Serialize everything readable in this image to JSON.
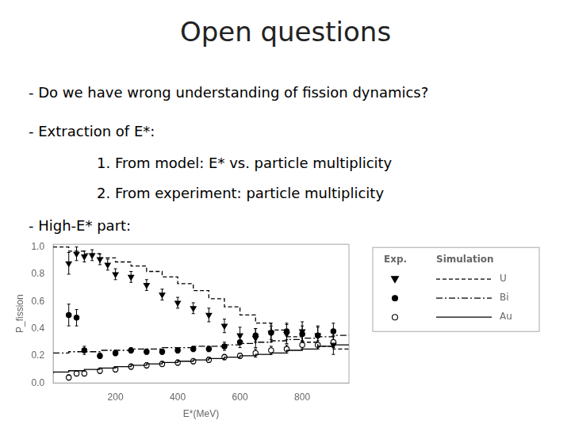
{
  "chart_data": {
    "type": "scatter",
    "title": "Open questions",
    "annotations": [
      "- Do we have wrong understanding of fission dynamics?",
      "- Extraction of E*:",
      "1. From model: E* vs. particle multiplicity",
      "2. From experiment: particle multiplicity",
      "- High-E* part:"
    ],
    "x_label": "E*(MeV)",
    "y_label": "P_fission",
    "xlim": [
      0,
      950
    ],
    "xticks": [
      200,
      400,
      600,
      800
    ],
    "ylim": [
      0,
      1.02
    ],
    "yticks": [
      {
        "value": 0,
        "label": "0.0"
      },
      0.2,
      0.4,
      0.6,
      0.8,
      {
        "value": 1,
        "label": "1.0"
      }
    ],
    "grid": false,
    "legend": "right",
    "legend_columns": [
      "Exp.",
      "Simulation"
    ],
    "series": [
      {
        "name": "U",
        "type": "step",
        "line_style": "dashed",
        "color": "#000000",
        "x": [
          0,
          50,
          100,
          150,
          200,
          250,
          300,
          350,
          400,
          450,
          500,
          550,
          600,
          650,
          700,
          750,
          800,
          850,
          900,
          950
        ],
        "values": [
          1.0,
          1.0,
          0.97,
          0.95,
          0.92,
          0.89,
          0.86,
          0.82,
          0.78,
          0.73,
          0.68,
          0.62,
          0.56,
          0.5,
          0.44,
          0.39,
          0.34,
          0.3,
          0.27,
          0.25
        ]
      },
      {
        "name": "Bi",
        "type": "step",
        "line_style": "dashdot",
        "color": "#000000",
        "x": [
          0,
          50,
          100,
          150,
          200,
          250,
          300,
          350,
          400,
          450,
          500,
          550,
          600,
          650,
          700,
          750,
          800,
          850,
          900,
          950
        ],
        "values": [
          0.22,
          0.22,
          0.23,
          0.23,
          0.24,
          0.24,
          0.25,
          0.25,
          0.26,
          0.26,
          0.27,
          0.27,
          0.28,
          0.29,
          0.3,
          0.31,
          0.32,
          0.33,
          0.34,
          0.35
        ]
      },
      {
        "name": "Au",
        "type": "step",
        "line_style": "solid",
        "color": "#000000",
        "x": [
          0,
          50,
          100,
          150,
          200,
          250,
          300,
          350,
          400,
          450,
          500,
          550,
          600,
          650,
          700,
          750,
          800,
          850,
          900,
          950
        ],
        "values": [
          0.07,
          0.08,
          0.09,
          0.1,
          0.11,
          0.12,
          0.13,
          0.14,
          0.15,
          0.16,
          0.17,
          0.18,
          0.19,
          0.2,
          0.21,
          0.22,
          0.24,
          0.25,
          0.27,
          0.28
        ]
      },
      {
        "name": "U",
        "type": "scatter",
        "marker": "triangle-down",
        "color": "#000000",
        "x": [
          50,
          75,
          100,
          125,
          150,
          175,
          200,
          250,
          300,
          350,
          400,
          450,
          500,
          550,
          600,
          650,
          700,
          750,
          800,
          850,
          900
        ],
        "values": [
          0.88,
          0.95,
          0.93,
          0.94,
          0.91,
          0.87,
          0.8,
          0.78,
          0.72,
          0.65,
          0.59,
          0.55,
          0.5,
          0.42,
          0.35,
          0.33,
          0.37,
          0.36,
          0.38,
          0.35,
          0.28
        ],
        "errors": [
          0.08,
          0.05,
          0.04,
          0.04,
          0.04,
          0.04,
          0.04,
          0.04,
          0.04,
          0.04,
          0.04,
          0.04,
          0.05,
          0.05,
          0.06,
          0.07,
          0.07,
          0.07,
          0.07,
          0.07,
          0.07
        ]
      },
      {
        "name": "Bi",
        "type": "scatter",
        "marker": "circle",
        "color": "#000000",
        "x": [
          50,
          75,
          100,
          150,
          200,
          250,
          300,
          350,
          400,
          450,
          500,
          550,
          600,
          650,
          700,
          750,
          800,
          850,
          900
        ],
        "values": [
          0.5,
          0.48,
          0.24,
          0.2,
          0.22,
          0.24,
          0.23,
          0.23,
          0.24,
          0.25,
          0.25,
          0.27,
          0.3,
          0.35,
          0.37,
          0.38,
          0.36,
          0.35,
          0.38
        ],
        "errors": [
          0.08,
          0.06,
          0.03,
          0.02,
          0.02,
          0.02,
          0.02,
          0.02,
          0.02,
          0.02,
          0.02,
          0.03,
          0.04,
          0.05,
          0.05,
          0.06,
          0.06,
          0.06,
          0.06
        ]
      },
      {
        "name": "Au",
        "type": "scatter",
        "marker": "open-circle",
        "color": "#000000",
        "x": [
          50,
          75,
          100,
          150,
          200,
          250,
          300,
          350,
          400,
          450,
          500,
          550,
          600,
          650,
          700,
          750,
          800,
          850,
          900
        ],
        "values": [
          0.04,
          0.07,
          0.07,
          0.09,
          0.1,
          0.12,
          0.13,
          0.14,
          0.15,
          0.16,
          0.17,
          0.19,
          0.2,
          0.22,
          0.24,
          0.25,
          0.28,
          0.28,
          0.3
        ],
        "errors": [
          0.02,
          0.02,
          0.02,
          0.02,
          0.02,
          0.02,
          0.02,
          0.02,
          0.02,
          0.02,
          0.02,
          0.02,
          0.02,
          0.03,
          0.03,
          0.03,
          0.03,
          0.03,
          0.04
        ]
      }
    ]
  }
}
